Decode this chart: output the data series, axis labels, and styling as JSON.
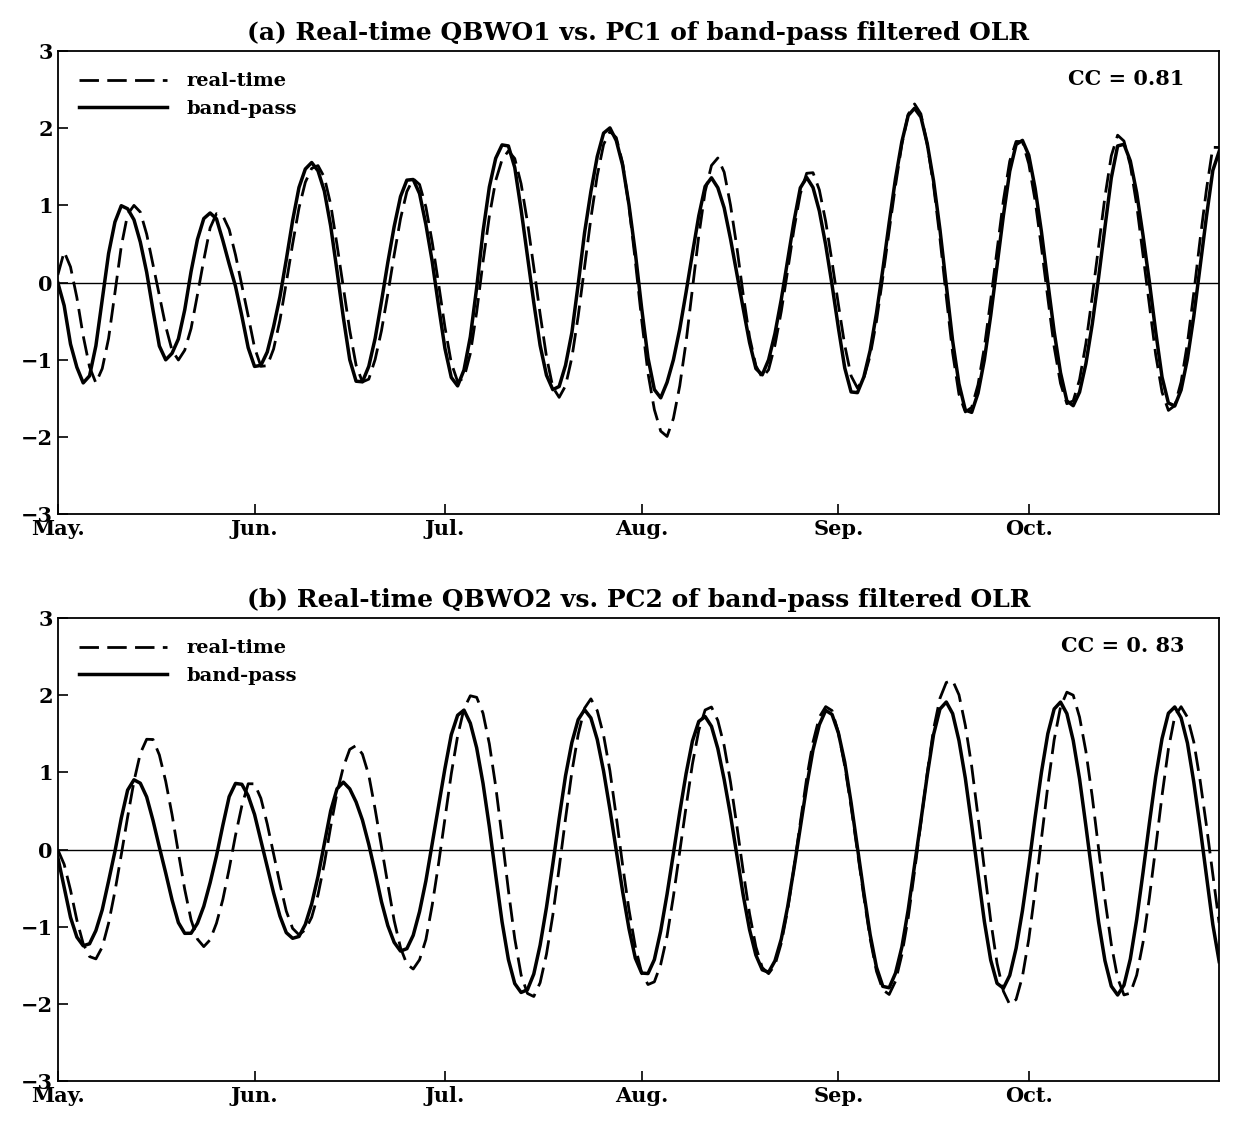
{
  "title_a": "(a) Real-time QBWO1 vs. PC1 of band-pass filtered OLR",
  "title_b": "(b) Real-time QBWO2 vs. PC2 of band-pass filtered OLR",
  "cc_a": "CC = 0.81",
  "cc_b": "CC = 0. 83",
  "ylim": [
    -3.0,
    3.0
  ],
  "yticks": [
    -3.0,
    -2.0,
    -1.0,
    0.0,
    1.0,
    2.0,
    3.0
  ],
  "xtick_positions": [
    0,
    31,
    61,
    92,
    123,
    153
  ],
  "xtick_labels": [
    "May.",
    "Jun.",
    "Jul.",
    "Aug.",
    "Sep.",
    "Oct."
  ],
  "legend_realtime": "real-time",
  "legend_bandpass": "band-pass",
  "n_days": 184,
  "xlim": [
    0,
    183
  ],
  "background_color": "#ffffff",
  "line_color": "#000000",
  "lw_solid": 2.5,
  "lw_dash": 2.0,
  "title_fontsize": 18,
  "tick_labelsize": 15,
  "legend_fontsize": 14,
  "cc_fontsize": 15,
  "panel_a_bp": [
    0.0,
    -0.3,
    -0.8,
    -1.1,
    -1.3,
    -1.2,
    -0.8,
    -0.2,
    0.4,
    0.8,
    1.0,
    0.95,
    0.8,
    0.5,
    0.1,
    -0.4,
    -0.85,
    -1.0,
    -0.9,
    -0.7,
    -0.3,
    0.2,
    0.6,
    0.85,
    0.9,
    0.8,
    0.5,
    0.2,
    -0.1,
    -0.5,
    -0.9,
    -1.1,
    -1.05,
    -0.85,
    -0.5,
    -0.1,
    0.4,
    0.9,
    1.3,
    1.5,
    1.55,
    1.4,
    1.1,
    0.6,
    0.0,
    -0.6,
    -1.1,
    -1.3,
    -1.25,
    -1.0,
    -0.6,
    -0.1,
    0.4,
    0.85,
    1.2,
    1.35,
    1.3,
    1.05,
    0.6,
    0.1,
    -0.5,
    -1.0,
    -1.3,
    -1.3,
    -1.0,
    -0.5,
    0.2,
    0.9,
    1.4,
    1.7,
    1.8,
    1.7,
    1.3,
    0.7,
    0.1,
    -0.5,
    -1.0,
    -1.3,
    -1.4,
    -1.25,
    -0.9,
    -0.4,
    0.3,
    0.9,
    1.4,
    1.8,
    2.0,
    1.95,
    1.7,
    1.3,
    0.7,
    0.05,
    -0.7,
    -1.2,
    -1.5,
    -1.4,
    -1.15,
    -0.8,
    -0.35,
    0.15,
    0.65,
    1.1,
    1.35,
    1.3,
    1.1,
    0.75,
    0.3,
    -0.15,
    -0.6,
    -1.0,
    -1.2,
    -1.1,
    -0.8,
    -0.4,
    0.1,
    0.6,
    1.1,
    1.35,
    1.3,
    1.05,
    0.65,
    0.15,
    -0.4,
    -0.95,
    -1.35,
    -1.45,
    -1.3,
    -1.0,
    -0.55,
    0.0,
    0.6,
    1.2,
    1.7,
    2.1,
    2.25,
    2.2,
    1.9,
    1.45,
    0.85,
    0.15,
    -0.6,
    -1.2,
    -1.6,
    -1.7,
    -1.5,
    -1.1,
    -0.55,
    0.1,
    0.75,
    1.35,
    1.75,
    1.85,
    1.7,
    1.3,
    0.75,
    0.1,
    -0.55,
    -1.1,
    -1.5,
    -1.6,
    -1.45,
    -1.1,
    -0.6,
    0.0,
    0.65,
    1.3,
    1.75,
    1.8,
    1.6,
    1.2,
    0.65,
    0.05,
    -0.6,
    -1.2,
    -1.55,
    -1.6,
    -1.4,
    -1.0,
    -0.45,
    0.2,
    0.85,
    1.45,
    1.7
  ],
  "panel_a_rt": [
    0.1,
    0.4,
    0.2,
    -0.2,
    -0.7,
    -1.1,
    -1.3,
    -1.1,
    -0.7,
    -0.1,
    0.5,
    0.9,
    1.0,
    0.9,
    0.6,
    0.2,
    -0.2,
    -0.6,
    -0.9,
    -1.0,
    -0.85,
    -0.55,
    -0.1,
    0.35,
    0.75,
    0.9,
    0.85,
    0.65,
    0.3,
    -0.1,
    -0.5,
    -0.9,
    -1.1,
    -1.05,
    -0.8,
    -0.4,
    0.1,
    0.6,
    1.05,
    1.35,
    1.5,
    1.5,
    1.3,
    0.9,
    0.35,
    -0.2,
    -0.75,
    -1.15,
    -1.3,
    -1.2,
    -0.9,
    -0.5,
    -0.0,
    0.5,
    0.95,
    1.25,
    1.35,
    1.2,
    0.85,
    0.35,
    -0.2,
    -0.75,
    -1.15,
    -1.3,
    -1.15,
    -0.75,
    -0.15,
    0.5,
    1.05,
    1.45,
    1.65,
    1.7,
    1.5,
    1.1,
    0.55,
    -0.05,
    -0.65,
    -1.15,
    -1.45,
    -1.45,
    -1.2,
    -0.75,
    -0.15,
    0.5,
    1.1,
    1.6,
    1.9,
    1.95,
    1.75,
    1.3,
    0.65,
    -0.1,
    -0.85,
    -1.45,
    -1.8,
    -2.0,
    -1.9,
    -1.55,
    -1.05,
    -0.4,
    0.3,
    0.95,
    1.4,
    1.6,
    1.55,
    1.2,
    0.7,
    0.1,
    -0.5,
    -0.95,
    -1.2,
    -1.2,
    -0.95,
    -0.55,
    -0.05,
    0.5,
    1.0,
    1.35,
    1.45,
    1.3,
    0.95,
    0.45,
    -0.1,
    -0.65,
    -1.1,
    -1.35,
    -1.3,
    -1.05,
    -0.65,
    -0.1,
    0.5,
    1.1,
    1.65,
    2.1,
    2.3,
    2.25,
    1.9,
    1.4,
    0.75,
    0.0,
    -0.75,
    -1.35,
    -1.65,
    -1.65,
    -1.4,
    -0.95,
    -0.35,
    0.3,
    0.95,
    1.5,
    1.8,
    1.85,
    1.6,
    1.15,
    0.55,
    -0.1,
    -0.75,
    -1.25,
    -1.55,
    -1.55,
    -1.3,
    -0.85,
    -0.25,
    0.4,
    1.05,
    1.6,
    1.9,
    1.85,
    1.55,
    1.05,
    0.4,
    -0.25,
    -0.9,
    -1.4,
    -1.65,
    -1.6,
    -1.3,
    -0.8,
    -0.15,
    0.55,
    1.2,
    1.75,
    1.75
  ],
  "panel_b_bp": [
    -0.1,
    -0.5,
    -0.9,
    -1.15,
    -1.25,
    -1.2,
    -1.0,
    -0.7,
    -0.3,
    0.1,
    0.55,
    0.85,
    0.9,
    0.8,
    0.55,
    0.2,
    -0.15,
    -0.5,
    -0.85,
    -1.05,
    -1.1,
    -1.0,
    -0.8,
    -0.5,
    -0.15,
    0.25,
    0.65,
    0.85,
    0.85,
    0.7,
    0.45,
    0.1,
    -0.25,
    -0.6,
    -0.9,
    -1.1,
    -1.15,
    -1.1,
    -0.9,
    -0.6,
    -0.2,
    0.25,
    0.65,
    0.85,
    0.85,
    0.7,
    0.5,
    0.2,
    -0.15,
    -0.55,
    -0.9,
    -1.15,
    -1.3,
    -1.3,
    -1.15,
    -0.85,
    -0.45,
    0.05,
    0.55,
    1.05,
    1.5,
    1.75,
    1.8,
    1.6,
    1.25,
    0.75,
    0.15,
    -0.5,
    -1.1,
    -1.55,
    -1.8,
    -1.85,
    -1.75,
    -1.45,
    -1.0,
    -0.45,
    0.15,
    0.75,
    1.25,
    1.6,
    1.8,
    1.75,
    1.5,
    1.1,
    0.6,
    0.05,
    -0.5,
    -1.0,
    -1.4,
    -1.6,
    -1.6,
    -1.4,
    -1.0,
    -0.5,
    0.05,
    0.6,
    1.1,
    1.5,
    1.7,
    1.7,
    1.5,
    1.15,
    0.7,
    0.2,
    -0.35,
    -0.85,
    -1.25,
    -1.5,
    -1.6,
    -1.5,
    -1.25,
    -0.85,
    -0.35,
    0.2,
    0.75,
    1.25,
    1.6,
    1.8,
    1.75,
    1.5,
    1.1,
    0.55,
    -0.05,
    -0.65,
    -1.2,
    -1.6,
    -1.8,
    -1.75,
    -1.5,
    -1.1,
    -0.55,
    0.05,
    0.65,
    1.25,
    1.7,
    1.9,
    1.85,
    1.55,
    1.1,
    0.5,
    -0.15,
    -0.8,
    -1.35,
    -1.7,
    -1.8,
    -1.65,
    -1.3,
    -0.8,
    -0.2,
    0.45,
    1.05,
    1.55,
    1.85,
    1.9,
    1.7,
    1.3,
    0.75,
    0.1,
    -0.55,
    -1.15,
    -1.6,
    -1.85,
    -1.85,
    -1.6,
    -1.15,
    -0.55,
    0.1,
    0.75,
    1.3,
    1.7,
    1.85,
    1.75,
    1.45,
    0.95,
    0.35,
    -0.3,
    -0.95,
    -1.45
  ],
  "panel_b_rt": [
    0.0,
    -0.2,
    -0.55,
    -0.95,
    -1.25,
    -1.4,
    -1.4,
    -1.2,
    -0.85,
    -0.4,
    0.1,
    0.6,
    1.05,
    1.35,
    1.45,
    1.35,
    1.05,
    0.65,
    0.15,
    -0.35,
    -0.8,
    -1.1,
    -1.25,
    -1.2,
    -1.0,
    -0.7,
    -0.3,
    0.15,
    0.55,
    0.85,
    0.85,
    0.65,
    0.3,
    -0.1,
    -0.5,
    -0.85,
    -1.05,
    -1.1,
    -1.0,
    -0.8,
    -0.45,
    0.0,
    0.5,
    0.9,
    1.2,
    1.35,
    1.3,
    1.1,
    0.7,
    0.2,
    -0.3,
    -0.8,
    -1.2,
    -1.45,
    -1.55,
    -1.45,
    -1.2,
    -0.75,
    -0.2,
    0.4,
    1.0,
    1.5,
    1.85,
    2.0,
    1.95,
    1.7,
    1.25,
    0.65,
    -0.05,
    -0.75,
    -1.35,
    -1.75,
    -1.9,
    -1.85,
    -1.55,
    -1.1,
    -0.5,
    0.15,
    0.8,
    1.35,
    1.75,
    1.95,
    1.85,
    1.55,
    1.1,
    0.5,
    -0.15,
    -0.75,
    -1.25,
    -1.6,
    -1.75,
    -1.7,
    -1.45,
    -1.05,
    -0.5,
    0.1,
    0.7,
    1.25,
    1.65,
    1.85,
    1.8,
    1.55,
    1.15,
    0.6,
    0.0,
    -0.6,
    -1.1,
    -1.45,
    -1.6,
    -1.55,
    -1.3,
    -0.9,
    -0.35,
    0.25,
    0.85,
    1.35,
    1.7,
    1.85,
    1.8,
    1.5,
    1.05,
    0.5,
    -0.1,
    -0.7,
    -1.25,
    -1.65,
    -1.85,
    -1.85,
    -1.6,
    -1.2,
    -0.65,
    0.0,
    0.65,
    1.3,
    1.8,
    2.1,
    2.2,
    2.1,
    1.75,
    1.25,
    0.6,
    -0.1,
    -0.8,
    -1.4,
    -1.8,
    -2.0,
    -1.95,
    -1.65,
    -1.15,
    -0.5,
    0.2,
    0.9,
    1.5,
    1.9,
    2.05,
    1.95,
    1.6,
    1.1,
    0.45,
    -0.25,
    -0.9,
    -1.45,
    -1.8,
    -1.9,
    -1.75,
    -1.4,
    -0.85,
    -0.2,
    0.5,
    1.15,
    1.65,
    1.85,
    1.75,
    1.45,
    0.95,
    0.35,
    -0.3,
    -0.95
  ]
}
